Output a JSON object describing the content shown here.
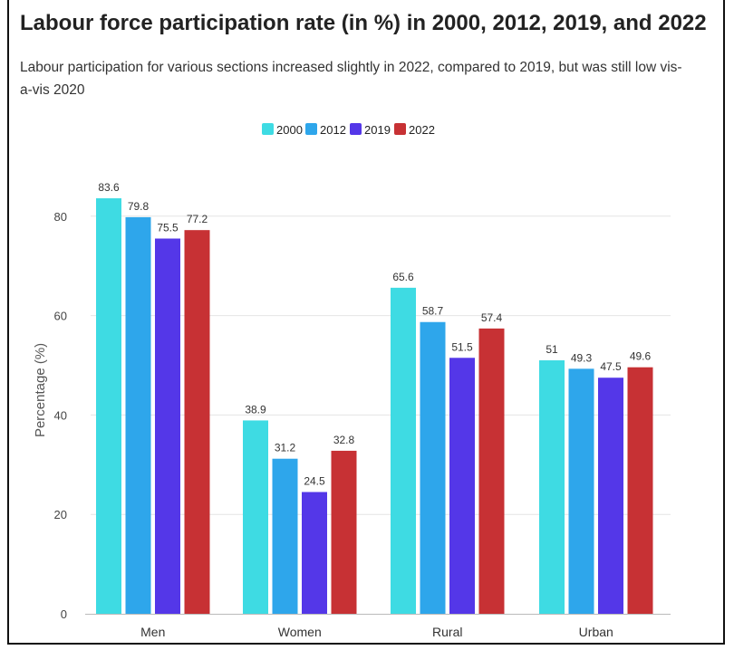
{
  "chart_data": {
    "type": "bar",
    "title": "Labour force participation rate (in %) in 2000, 2012, 2019, and 2022",
    "subtitle": "Labour participation for various sections increased slightly in 2022, compared to 2019, but was still low vis-a-vis 2020",
    "xlabel": "",
    "ylabel": "Percentage (%)",
    "categories": [
      "Men",
      "Women",
      "Rural",
      "Urban"
    ],
    "series": [
      {
        "name": "2000",
        "color": "#3edbe3",
        "values": [
          83.6,
          38.9,
          65.6,
          51
        ]
      },
      {
        "name": "2012",
        "color": "#2ea6eb",
        "values": [
          79.8,
          31.2,
          58.7,
          49.3
        ]
      },
      {
        "name": "2019",
        "color": "#5437e8",
        "values": [
          75.5,
          24.5,
          51.5,
          47.5
        ]
      },
      {
        "name": "2022",
        "color": "#c73134",
        "values": [
          77.2,
          32.8,
          57.4,
          49.6
        ]
      }
    ],
    "value_labels": [
      [
        "83.6",
        "38.9",
        "65.6",
        "51"
      ],
      [
        "79.8",
        "31.2",
        "58.7",
        "49.3"
      ],
      [
        "75.5",
        "24.5",
        "51.5",
        "47.5"
      ],
      [
        "77.2",
        "32.8",
        "57.4",
        "49.6"
      ]
    ],
    "yticks": [
      "0",
      "20",
      "40",
      "60",
      "80"
    ],
    "ylim": [
      0,
      90
    ],
    "grid": true,
    "legend_position": "top-center"
  }
}
